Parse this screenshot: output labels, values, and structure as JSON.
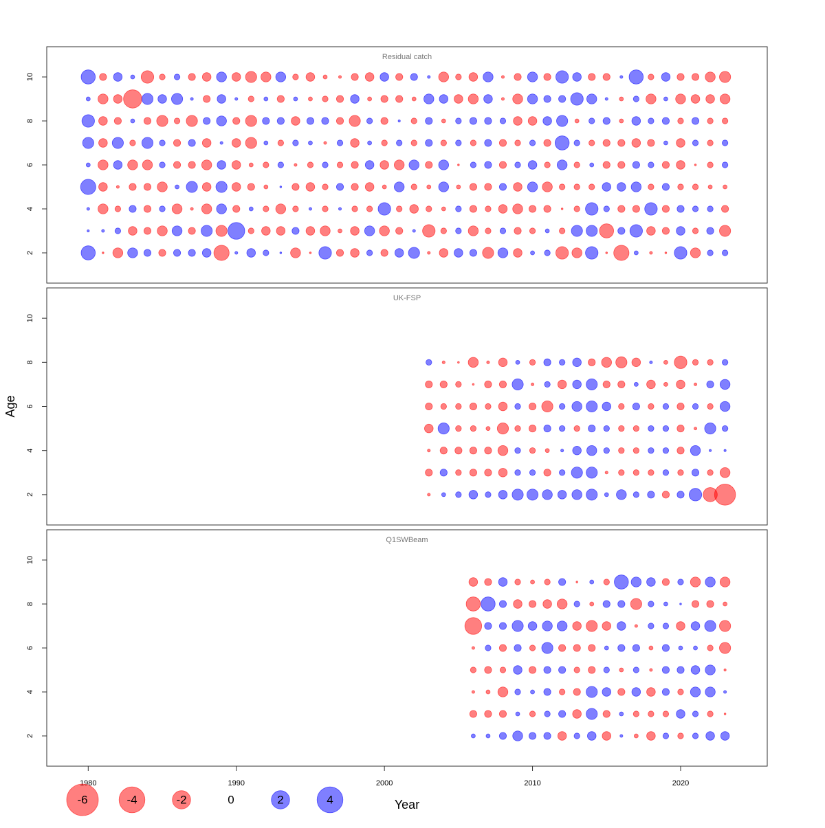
{
  "chart_data": [
    {
      "type": "bubble",
      "title": "Residual catch",
      "xlim": [
        1977.2,
        2025.85
      ],
      "ylim": [
        0.625,
        11.375
      ],
      "yticks": [
        2,
        4,
        6,
        8,
        10
      ],
      "colors": {
        "negative": "#ff0000",
        "positive": "#0000ff"
      },
      "x": [
        1980,
        1981,
        1982,
        1983,
        1984,
        1985,
        1986,
        1987,
        1988,
        1989,
        1990,
        1991,
        1992,
        1993,
        1994,
        1995,
        1996,
        1997,
        1998,
        1999,
        2000,
        2001,
        2002,
        2003,
        2004,
        2005,
        2006,
        2007,
        2008,
        2009,
        2010,
        2011,
        2012,
        2013,
        2014,
        2015,
        2016,
        2017,
        2018,
        2019,
        2020,
        2021,
        2022,
        2023
      ],
      "y": [
        2,
        3,
        4,
        5,
        6,
        7,
        8,
        9,
        10
      ],
      "values": [
        [
          1.2,
          -0.02,
          -0.6,
          0.6,
          0.3,
          -0.3,
          0.3,
          0.3,
          0.45,
          -1.4,
          0.05,
          0.45,
          0.2,
          0.02,
          -0.6,
          -0.02,
          0.95,
          -0.3,
          -0.45,
          0.2,
          -0.3,
          0.45,
          0.75,
          -0.05,
          -0.45,
          0.45,
          0.3,
          -0.75,
          0.6,
          -0.45,
          0.1,
          0.2,
          -0.95,
          -0.6,
          0.95,
          -0.02,
          -1.4,
          0.1,
          -0.05,
          -0.02,
          0.95,
          -0.6,
          0.2,
          0.2
        ],
        [
          0.03,
          0.05,
          0.2,
          -0.45,
          -0.3,
          -0.6,
          0.6,
          -0.3,
          0.75,
          -0.75,
          1.7,
          -0.2,
          -0.45,
          -0.45,
          0.3,
          -0.45,
          -0.6,
          -0.1,
          -0.45,
          0.6,
          -0.6,
          -0.3,
          0.05,
          -0.95,
          -0.2,
          0.2,
          -0.6,
          -0.2,
          0.2,
          -0.3,
          -0.2,
          0.1,
          -0.2,
          0.75,
          0.75,
          -1.2,
          0.3,
          0.95,
          -0.45,
          -0.3,
          0.45,
          -0.2,
          0.3,
          -0.75
        ],
        [
          0.05,
          -0.6,
          -0.2,
          0.3,
          -0.3,
          0.2,
          -0.6,
          -0.05,
          -0.6,
          0.6,
          -0.3,
          0.1,
          -0.2,
          -0.6,
          -0.2,
          0.05,
          -0.2,
          0.05,
          -0.2,
          -0.2,
          0.95,
          -0.2,
          -0.45,
          -0.2,
          -0.1,
          0.2,
          -0.3,
          -0.2,
          -0.45,
          -0.6,
          -0.3,
          -0.3,
          -0.02,
          -0.2,
          0.95,
          0.2,
          -0.3,
          -0.3,
          0.95,
          -0.3,
          0.3,
          0.2,
          0.2,
          -0.3
        ],
        [
          1.4,
          -0.45,
          -0.05,
          -0.3,
          -0.3,
          -0.6,
          0.1,
          0.75,
          -0.45,
          0.75,
          -0.45,
          -0.3,
          -0.1,
          0.02,
          -0.3,
          -0.45,
          -0.2,
          0.3,
          -0.3,
          -0.45,
          -0.1,
          0.6,
          -0.2,
          -0.1,
          0.6,
          -0.1,
          -0.3,
          -0.3,
          0.3,
          -0.45,
          0.6,
          -0.6,
          -0.2,
          -0.2,
          -0.2,
          0.45,
          0.45,
          0.6,
          -0.2,
          0.3,
          -0.2,
          -0.2,
          -0.1,
          -0.1
        ],
        [
          0.1,
          -0.6,
          0.45,
          -0.6,
          -0.6,
          0.2,
          -0.3,
          -0.3,
          -0.6,
          0.45,
          -0.45,
          -0.1,
          -0.2,
          0.2,
          -0.05,
          -0.2,
          0.2,
          -0.2,
          -0.3,
          0.45,
          -0.45,
          -0.6,
          0.6,
          -0.3,
          0.6,
          -0.02,
          0.2,
          0.3,
          -0.3,
          0.2,
          0.45,
          -0.2,
          0.6,
          -0.2,
          0.1,
          -0.3,
          -0.3,
          0.3,
          0.2,
          -0.3,
          -0.45,
          -0.02,
          -0.2,
          0.2
        ],
        [
          0.75,
          -0.45,
          0.75,
          -0.2,
          0.75,
          0.2,
          -0.3,
          0.3,
          -0.45,
          0.05,
          -0.45,
          -0.75,
          0.1,
          -0.2,
          0.2,
          0.1,
          -0.05,
          0.2,
          -0.45,
          0.1,
          -0.2,
          0.2,
          -0.2,
          0.3,
          -0.2,
          0.2,
          -0.2,
          0.3,
          -0.3,
          -0.2,
          0.2,
          -0.3,
          1.2,
          0.2,
          -0.2,
          -0.3,
          -0.3,
          -0.45,
          -0.3,
          0.1,
          -0.45,
          0.2,
          -0.2,
          0.2
        ],
        [
          0.95,
          -0.45,
          -0.3,
          0.1,
          -0.3,
          -0.75,
          -0.2,
          -0.75,
          0.3,
          0.6,
          -0.3,
          -0.75,
          0.3,
          0.3,
          -0.45,
          0.3,
          0.3,
          -0.3,
          -0.75,
          0.2,
          -0.3,
          0.03,
          -0.2,
          0.3,
          -0.1,
          0.2,
          0.3,
          0.3,
          0.2,
          -0.45,
          -0.45,
          0.45,
          0.75,
          -0.1,
          0.2,
          0.3,
          -0.1,
          0.45,
          0.2,
          0.3,
          -0.2,
          0.3,
          -0.2,
          -0.2
        ],
        [
          0.1,
          -0.6,
          -0.45,
          -2.0,
          0.75,
          0.45,
          0.75,
          0.05,
          -0.3,
          0.45,
          0.05,
          -0.2,
          0.1,
          -0.3,
          0.1,
          -0.1,
          -0.2,
          -0.3,
          0.45,
          -0.1,
          -0.3,
          -0.3,
          -0.1,
          0.6,
          0.45,
          -0.45,
          -0.6,
          0.45,
          -0.05,
          -0.6,
          0.6,
          0.3,
          0.3,
          0.95,
          0.6,
          0.05,
          -0.1,
          0.2,
          -0.6,
          0.1,
          -0.6,
          -0.45,
          -0.45,
          -0.6
        ],
        [
          1.2,
          -0.3,
          0.45,
          0.1,
          -0.95,
          -0.2,
          0.2,
          -0.3,
          -0.45,
          0.6,
          -0.45,
          -0.75,
          -0.6,
          0.6,
          -0.2,
          -0.45,
          -0.1,
          -0.05,
          -0.3,
          -0.45,
          0.45,
          -0.3,
          0.3,
          0.05,
          -0.6,
          -0.2,
          -0.45,
          0.6,
          -0.05,
          -0.3,
          0.6,
          -0.3,
          0.95,
          0.45,
          -0.3,
          -0.3,
          0.05,
          1.2,
          -0.2,
          0.45,
          -0.3,
          -0.3,
          -0.6,
          -0.75
        ]
      ]
    },
    {
      "type": "bubble",
      "title": "UK-FSP",
      "ylabel": "Age",
      "xlim": [
        1977.2,
        2025.85
      ],
      "ylim": [
        0.625,
        11.375
      ],
      "yticks": [
        2,
        4,
        6,
        8,
        10
      ],
      "colors": {
        "negative": "#ff0000",
        "positive": "#0000ff"
      },
      "x": [
        2003,
        2004,
        2005,
        2006,
        2007,
        2008,
        2009,
        2010,
        2011,
        2012,
        2013,
        2014,
        2015,
        2016,
        2017,
        2018,
        2019,
        2020,
        2021,
        2022,
        2023
      ],
      "y": [
        2,
        3,
        4,
        5,
        6,
        7,
        8
      ],
      "values": [
        [
          -0.05,
          0.1,
          0.2,
          0.45,
          0.2,
          0.45,
          0.75,
          0.75,
          0.6,
          0.45,
          0.6,
          0.75,
          0.1,
          0.6,
          0.2,
          0.3,
          -0.3,
          0.3,
          0.95,
          -1.2,
          -2.65
        ],
        [
          -0.3,
          0.3,
          -0.2,
          -0.3,
          -0.3,
          -0.45,
          0.2,
          0.2,
          -0.3,
          0.2,
          0.75,
          0.75,
          -0.05,
          -0.2,
          -0.2,
          -0.2,
          0.2,
          -0.2,
          0.3,
          -0.2,
          -0.6
        ],
        [
          -0.05,
          -0.3,
          -0.3,
          -0.3,
          -0.3,
          -0.6,
          0.2,
          -0.2,
          -0.1,
          0.05,
          0.45,
          0.6,
          0.2,
          -0.2,
          -0.2,
          0.2,
          0.2,
          -0.3,
          0.6,
          0.03,
          0.03
        ],
        [
          -0.45,
          0.75,
          -0.2,
          -0.2,
          -0.1,
          -0.75,
          -0.2,
          -0.3,
          0.3,
          0.2,
          -0.2,
          0.3,
          0.2,
          -0.2,
          -0.2,
          0.2,
          0.2,
          -0.3,
          -0.05,
          0.75,
          0.2
        ],
        [
          -0.3,
          -0.2,
          -0.2,
          -0.3,
          -0.2,
          -0.45,
          0.2,
          -0.3,
          -0.75,
          0.2,
          0.6,
          0.75,
          0.45,
          -0.2,
          0.3,
          -0.2,
          0.2,
          -0.3,
          0.2,
          -0.2,
          0.6
        ],
        [
          -0.3,
          -0.3,
          -0.2,
          -0.02,
          -0.3,
          -0.3,
          0.75,
          -0.05,
          0.2,
          -0.45,
          0.45,
          0.75,
          -0.3,
          -0.3,
          0.1,
          -0.45,
          -0.1,
          -0.45,
          -0.05,
          0.3,
          0.6
        ],
        [
          0.2,
          -0.05,
          -0.02,
          -0.6,
          -0.05,
          -0.45,
          0.1,
          -0.2,
          0.3,
          0.2,
          0.45,
          -0.3,
          -0.6,
          -0.75,
          -0.45,
          0.05,
          -0.1,
          -0.95,
          -0.2,
          -0.2,
          0.2
        ]
      ]
    },
    {
      "type": "bubble",
      "title": "Q1SWBeam",
      "xlabel": "Year",
      "xlim": [
        1977.2,
        2025.85
      ],
      "ylim": [
        0.625,
        11.375
      ],
      "yticks": [
        2,
        4,
        6,
        8,
        10
      ],
      "xticks": [
        1980,
        1990,
        2000,
        2010,
        2020
      ],
      "colors": {
        "negative": "#ff0000",
        "positive": "#0000ff"
      },
      "size_legend": {
        "values": [
          -6,
          -4,
          -2,
          0,
          2,
          4
        ]
      },
      "x": [
        2006,
        2007,
        2008,
        2009,
        2010,
        2011,
        2012,
        2013,
        2014,
        2015,
        2016,
        2017,
        2018,
        2019,
        2020,
        2021,
        2022,
        2023
      ],
      "y": [
        2,
        3,
        4,
        5,
        6,
        7,
        8,
        9
      ],
      "values": [
        [
          0.1,
          0.1,
          0.3,
          0.6,
          0.3,
          0.3,
          -0.45,
          0.2,
          0.45,
          -0.45,
          0.05,
          -0.1,
          -0.45,
          0.2,
          -0.2,
          0.2,
          0.45,
          0.45
        ],
        [
          -0.3,
          -0.3,
          -0.3,
          0.1,
          -0.2,
          0.2,
          0.3,
          -0.45,
          0.75,
          -0.3,
          0.1,
          -0.2,
          -0.2,
          -0.2,
          0.45,
          0.2,
          -0.2,
          -0.02
        ],
        [
          -0.05,
          -0.1,
          -0.6,
          0.2,
          0.1,
          0.3,
          -0.2,
          -0.3,
          0.75,
          0.45,
          -0.3,
          0.45,
          -0.45,
          0.3,
          -0.2,
          0.6,
          0.6,
          0.05
        ],
        [
          -0.2,
          -0.3,
          -0.2,
          0.45,
          -0.3,
          0.3,
          0.3,
          -0.2,
          -0.3,
          0.2,
          -0.1,
          0.2,
          -0.05,
          0.3,
          0.3,
          0.45,
          0.6,
          -0.03
        ],
        [
          -0.05,
          0.2,
          -0.3,
          0.3,
          -0.2,
          0.75,
          -0.3,
          -0.3,
          -0.3,
          0.1,
          0.3,
          0.3,
          -0.1,
          0.3,
          0.1,
          0.1,
          -0.2,
          -0.75
        ],
        [
          -1.7,
          0.3,
          0.3,
          0.75,
          0.45,
          0.6,
          0.6,
          -0.45,
          -0.75,
          -0.45,
          0.45,
          -0.05,
          0.2,
          0.2,
          -0.45,
          0.45,
          0.75,
          -0.75
        ],
        [
          -1.2,
          1.2,
          0.3,
          -0.45,
          -0.3,
          -0.45,
          -0.6,
          0.2,
          -0.1,
          0.3,
          0.3,
          -0.75,
          0.2,
          0.1,
          0.02,
          -0.3,
          -0.3,
          -0.1
        ],
        [
          -0.45,
          -0.3,
          0.45,
          -0.2,
          -0.1,
          -0.2,
          0.3,
          -0.02,
          0.1,
          -0.2,
          1.2,
          0.6,
          0.45,
          -0.3,
          0.2,
          -0.6,
          0.6,
          -0.6
        ]
      ]
    }
  ]
}
